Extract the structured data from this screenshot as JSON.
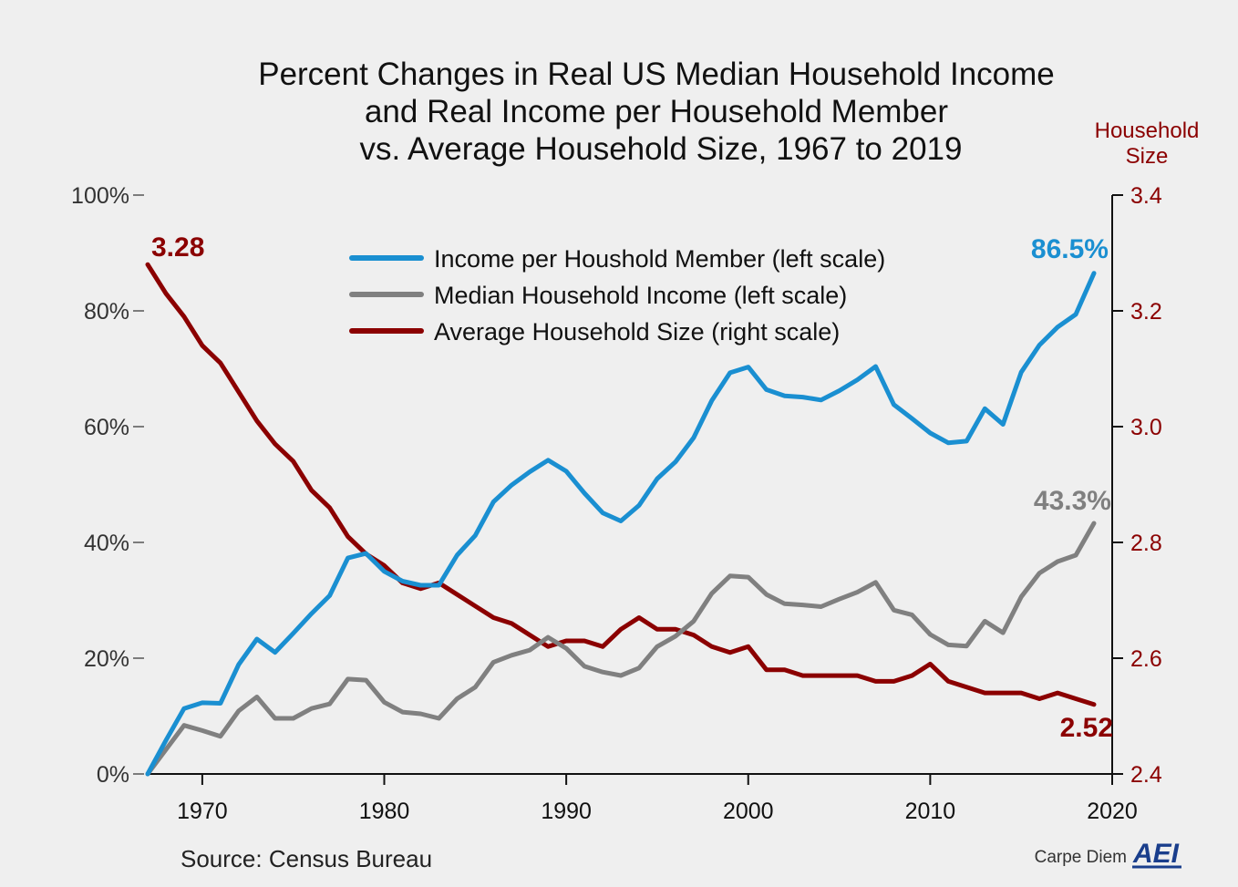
{
  "chart_data": {
    "type": "line",
    "title": [
      "Percent Changes in Real US Median Household Income",
      "and Real Income per Household Member",
      "vs. Average Household Size, 1967 to 2019"
    ],
    "ylabel_right": [
      "Household",
      "Size"
    ],
    "xlim": [
      1967,
      2020
    ],
    "ylim_left": [
      0,
      100
    ],
    "ylim_right": [
      2.4,
      3.4
    ],
    "x_ticks": [
      "1970",
      "1980",
      "1990",
      "2000",
      "2010",
      "2020"
    ],
    "y_left_ticks": [
      "0%",
      "20%",
      "40%",
      "60%",
      "80%",
      "100%"
    ],
    "y_right_ticks": [
      "2.4",
      "2.6",
      "2.8",
      "3.0",
      "3.2",
      "3.4"
    ],
    "legend_position": "top-center",
    "grid": false,
    "x": [
      1967,
      1968,
      1969,
      1970,
      1971,
      1972,
      1973,
      1974,
      1975,
      1976,
      1977,
      1978,
      1979,
      1980,
      1981,
      1982,
      1983,
      1984,
      1985,
      1986,
      1987,
      1988,
      1989,
      1990,
      1991,
      1992,
      1993,
      1994,
      1995,
      1996,
      1997,
      1998,
      1999,
      2000,
      2001,
      2002,
      2003,
      2004,
      2005,
      2006,
      2007,
      2008,
      2009,
      2010,
      2011,
      2012,
      2013,
      2014,
      2015,
      2016,
      2017,
      2018,
      2019
    ],
    "series": [
      {
        "name": "Income per Houshold Member (left scale)",
        "axis": "left",
        "color": "#1a8fd1",
        "values": [
          0,
          5.8,
          11.3,
          12.3,
          12.2,
          18.9,
          23.3,
          21,
          24.3,
          27.7,
          30.8,
          37.3,
          38.1,
          35,
          33.3,
          32.6,
          32.6,
          37.8,
          41.2,
          47,
          49.9,
          52.2,
          54.2,
          52.3,
          48.5,
          45.1,
          43.7,
          46.4,
          51,
          53.9,
          58.1,
          64.5,
          69.3,
          70.3,
          66.4,
          65.3,
          65.1,
          64.6,
          66.2,
          68.1,
          70.4,
          63.8,
          61.4,
          58.9,
          57.2,
          57.5,
          63.1,
          60.4,
          69.4,
          74.1,
          77.2,
          79.4,
          86.5
        ],
        "end_label": "86.5%"
      },
      {
        "name": "Median Household Income (left scale)",
        "axis": "left",
        "color": "#808080",
        "values": [
          0,
          4.2,
          8.4,
          7.5,
          6.5,
          10.9,
          13.3,
          9.6,
          9.6,
          11.3,
          12.1,
          16.4,
          16.2,
          12.4,
          10.7,
          10.4,
          9.6,
          13,
          15,
          19.3,
          20.5,
          21.4,
          23.6,
          21.7,
          18.6,
          17.6,
          17,
          18.3,
          22,
          23.8,
          26.4,
          31.2,
          34.2,
          34,
          31,
          29.4,
          29.2,
          28.9,
          30.2,
          31.4,
          33.1,
          28.3,
          27.5,
          24.1,
          22.3,
          22.1,
          26.4,
          24.4,
          30.6,
          34.7,
          36.7,
          37.8,
          43.3
        ],
        "end_label": "43.3%"
      },
      {
        "name": "Average Household Size (right scale)",
        "axis": "right",
        "color": "#8b0000",
        "values": [
          3.28,
          3.23,
          3.19,
          3.14,
          3.11,
          3.06,
          3.01,
          2.97,
          2.94,
          2.89,
          2.86,
          2.81,
          2.78,
          2.76,
          2.73,
          2.72,
          2.73,
          2.71,
          2.69,
          2.67,
          2.66,
          2.64,
          2.62,
          2.63,
          2.63,
          2.62,
          2.65,
          2.67,
          2.65,
          2.65,
          2.64,
          2.62,
          2.61,
          2.62,
          2.58,
          2.58,
          2.57,
          2.57,
          2.57,
          2.57,
          2.56,
          2.56,
          2.57,
          2.59,
          2.56,
          2.55,
          2.54,
          2.54,
          2.54,
          2.53,
          2.54,
          2.53,
          2.52
        ],
        "start_label": "3.28",
        "end_label": "2.52"
      }
    ]
  },
  "source": "Source: Census Bureau",
  "credit": {
    "text": "Carpe Diem",
    "logo": "AEI"
  }
}
